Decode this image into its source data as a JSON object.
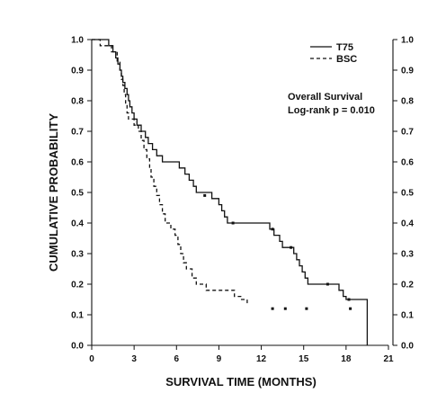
{
  "chart_data": {
    "type": "line",
    "subtype": "kaplan-meier step",
    "xlabel": "SURVIVAL TIME (MONTHS)",
    "ylabel": "CUMULATIVE PROBABILITY",
    "xlim": [
      0,
      21
    ],
    "ylim": [
      0,
      1
    ],
    "x_ticks": [
      0,
      3,
      6,
      9,
      12,
      15,
      18,
      21
    ],
    "y_ticks": [
      0.0,
      0.1,
      0.2,
      0.3,
      0.4,
      0.5,
      0.6,
      0.7,
      0.8,
      0.9,
      1.0
    ],
    "y_tick_labels": [
      "0.0",
      "0.1",
      "0.2",
      "0.3",
      "0.4",
      "0.5",
      "0.6",
      "0.7",
      "0.8",
      "0.9",
      "1.0"
    ],
    "secondary_y_axis": true,
    "grid": false,
    "legend_position": "top-right",
    "annotations": [
      "Overall Survival",
      "Log-rank  p = 0.010"
    ],
    "series": [
      {
        "name": "T75",
        "style": "solid",
        "color": "#111111",
        "steps": [
          [
            0,
            1.0
          ],
          [
            1.2,
            0.98
          ],
          [
            1.5,
            0.96
          ],
          [
            1.7,
            0.94
          ],
          [
            1.85,
            0.92
          ],
          [
            2.0,
            0.9
          ],
          [
            2.1,
            0.88
          ],
          [
            2.2,
            0.86
          ],
          [
            2.35,
            0.84
          ],
          [
            2.5,
            0.82
          ],
          [
            2.6,
            0.8
          ],
          [
            2.7,
            0.78
          ],
          [
            2.85,
            0.76
          ],
          [
            3.0,
            0.74
          ],
          [
            3.2,
            0.72
          ],
          [
            3.5,
            0.7
          ],
          [
            3.8,
            0.68
          ],
          [
            4.0,
            0.66
          ],
          [
            4.3,
            0.64
          ],
          [
            4.6,
            0.62
          ],
          [
            5.0,
            0.6
          ],
          [
            6.2,
            0.58
          ],
          [
            6.6,
            0.56
          ],
          [
            6.9,
            0.54
          ],
          [
            7.2,
            0.52
          ],
          [
            7.4,
            0.5
          ],
          [
            8.5,
            0.48
          ],
          [
            9.0,
            0.46
          ],
          [
            9.2,
            0.44
          ],
          [
            9.4,
            0.42
          ],
          [
            9.6,
            0.4
          ],
          [
            12.6,
            0.38
          ],
          [
            12.9,
            0.36
          ],
          [
            13.3,
            0.34
          ],
          [
            13.5,
            0.32
          ],
          [
            14.3,
            0.3
          ],
          [
            14.5,
            0.28
          ],
          [
            14.7,
            0.26
          ],
          [
            14.9,
            0.24
          ],
          [
            15.1,
            0.22
          ],
          [
            15.3,
            0.2
          ],
          [
            17.5,
            0.18
          ],
          [
            17.8,
            0.16
          ],
          [
            18.0,
            0.15
          ],
          [
            19.5,
            0.0
          ]
        ],
        "end_x": 19.5,
        "censored": [
          [
            8.0,
            0.49
          ],
          [
            10.0,
            0.4
          ],
          [
            12.8,
            0.38
          ],
          [
            14.1,
            0.32
          ],
          [
            16.7,
            0.2
          ],
          [
            18.2,
            0.15
          ]
        ]
      },
      {
        "name": "BSC",
        "style": "dashed",
        "color": "#111111",
        "steps": [
          [
            0,
            1.0
          ],
          [
            0.6,
            0.98
          ],
          [
            1.4,
            0.96
          ],
          [
            1.8,
            0.93
          ],
          [
            2.0,
            0.9
          ],
          [
            2.1,
            0.87
          ],
          [
            2.2,
            0.85
          ],
          [
            2.3,
            0.82
          ],
          [
            2.4,
            0.79
          ],
          [
            2.5,
            0.76
          ],
          [
            2.6,
            0.74
          ],
          [
            3.0,
            0.72
          ],
          [
            3.3,
            0.7
          ],
          [
            3.5,
            0.67
          ],
          [
            3.7,
            0.64
          ],
          [
            3.9,
            0.61
          ],
          [
            4.1,
            0.58
          ],
          [
            4.2,
            0.55
          ],
          [
            4.4,
            0.52
          ],
          [
            4.6,
            0.49
          ],
          [
            4.8,
            0.46
          ],
          [
            5.0,
            0.43
          ],
          [
            5.2,
            0.4
          ],
          [
            5.6,
            0.38
          ],
          [
            5.9,
            0.36
          ],
          [
            6.1,
            0.33
          ],
          [
            6.3,
            0.3
          ],
          [
            6.5,
            0.27
          ],
          [
            6.7,
            0.25
          ],
          [
            7.1,
            0.22
          ],
          [
            7.4,
            0.2
          ],
          [
            8.1,
            0.18
          ],
          [
            10.1,
            0.16
          ],
          [
            10.6,
            0.15
          ],
          [
            11.0,
            0.13
          ]
        ],
        "end_x": 11.0,
        "censored": [
          [
            12.8,
            0.12
          ],
          [
            13.7,
            0.12
          ],
          [
            15.2,
            0.12
          ],
          [
            18.3,
            0.12
          ]
        ]
      }
    ]
  }
}
